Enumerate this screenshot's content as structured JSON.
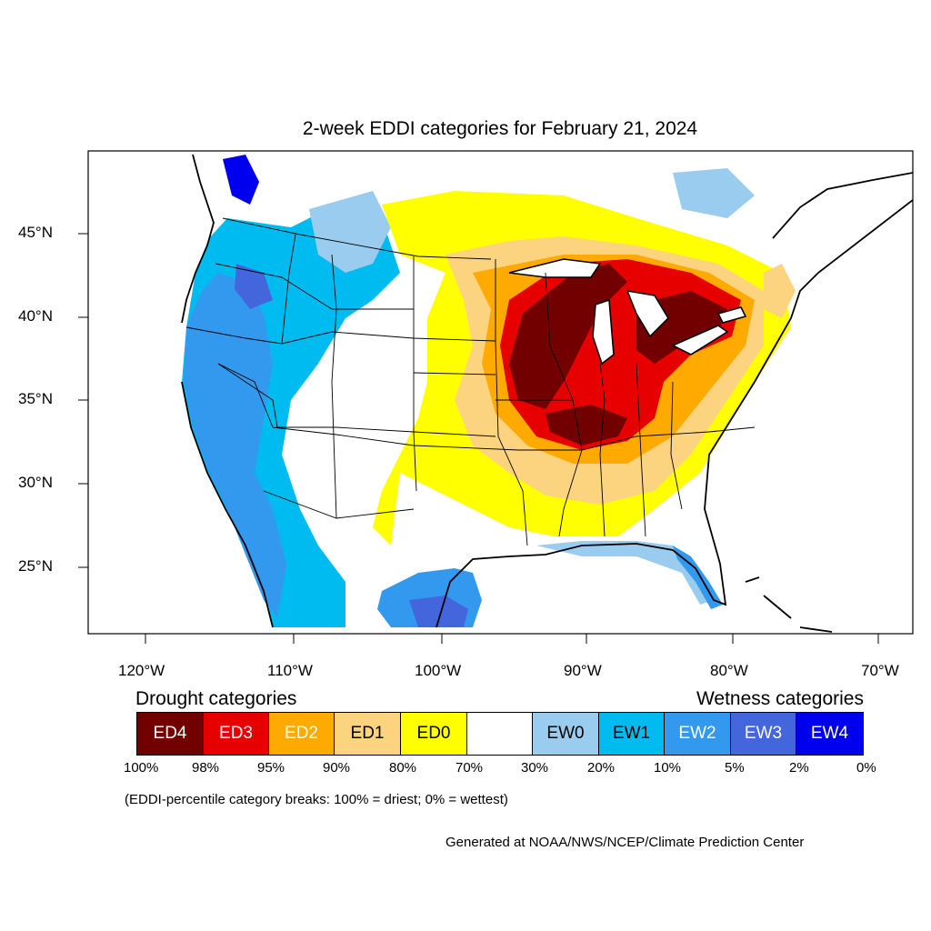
{
  "title": "2-week EDDI categories for February 21, 2024",
  "lat_labels": [
    "45°N",
    "40°N",
    "35°N",
    "30°N",
    "25°N"
  ],
  "lon_labels": [
    "120°W",
    "110°W",
    "100°W",
    "90°W",
    "80°W",
    "70°W"
  ],
  "legend": {
    "drought_heading": "Drought categories",
    "wetness_heading": "Wetness categories",
    "categories": [
      {
        "label": "ED4",
        "color": "#730000",
        "text_color": "#ffffff"
      },
      {
        "label": "ED3",
        "color": "#e60000",
        "text_color": "#ffffff"
      },
      {
        "label": "ED2",
        "color": "#ffaa00",
        "text_color": "#ffffff"
      },
      {
        "label": "ED1",
        "color": "#fcd37f",
        "text_color": "#000000"
      },
      {
        "label": "ED0",
        "color": "#ffff00",
        "text_color": "#000000"
      },
      {
        "label": "",
        "color": "#ffffff",
        "text_color": "#000000"
      },
      {
        "label": "EW0",
        "color": "#99ccee",
        "text_color": "#000000"
      },
      {
        "label": "EW1",
        "color": "#00bbf0",
        "text_color": "#000000"
      },
      {
        "label": "EW2",
        "color": "#3399ee",
        "text_color": "#ffffff"
      },
      {
        "label": "EW3",
        "color": "#4466dd",
        "text_color": "#ffffff"
      },
      {
        "label": "EW4",
        "color": "#0000ee",
        "text_color": "#ffffff"
      }
    ],
    "percentiles": [
      "100%",
      "98%",
      "95%",
      "90%",
      "80%",
      "70%",
      "30%",
      "20%",
      "10%",
      "5%",
      "2%",
      "0%"
    ]
  },
  "note": "(EDDI-percentile category breaks: 100% = driest; 0% = wettest)",
  "credit": "Generated at NOAA/NWS/NCEP/Climate Prediction Center"
}
